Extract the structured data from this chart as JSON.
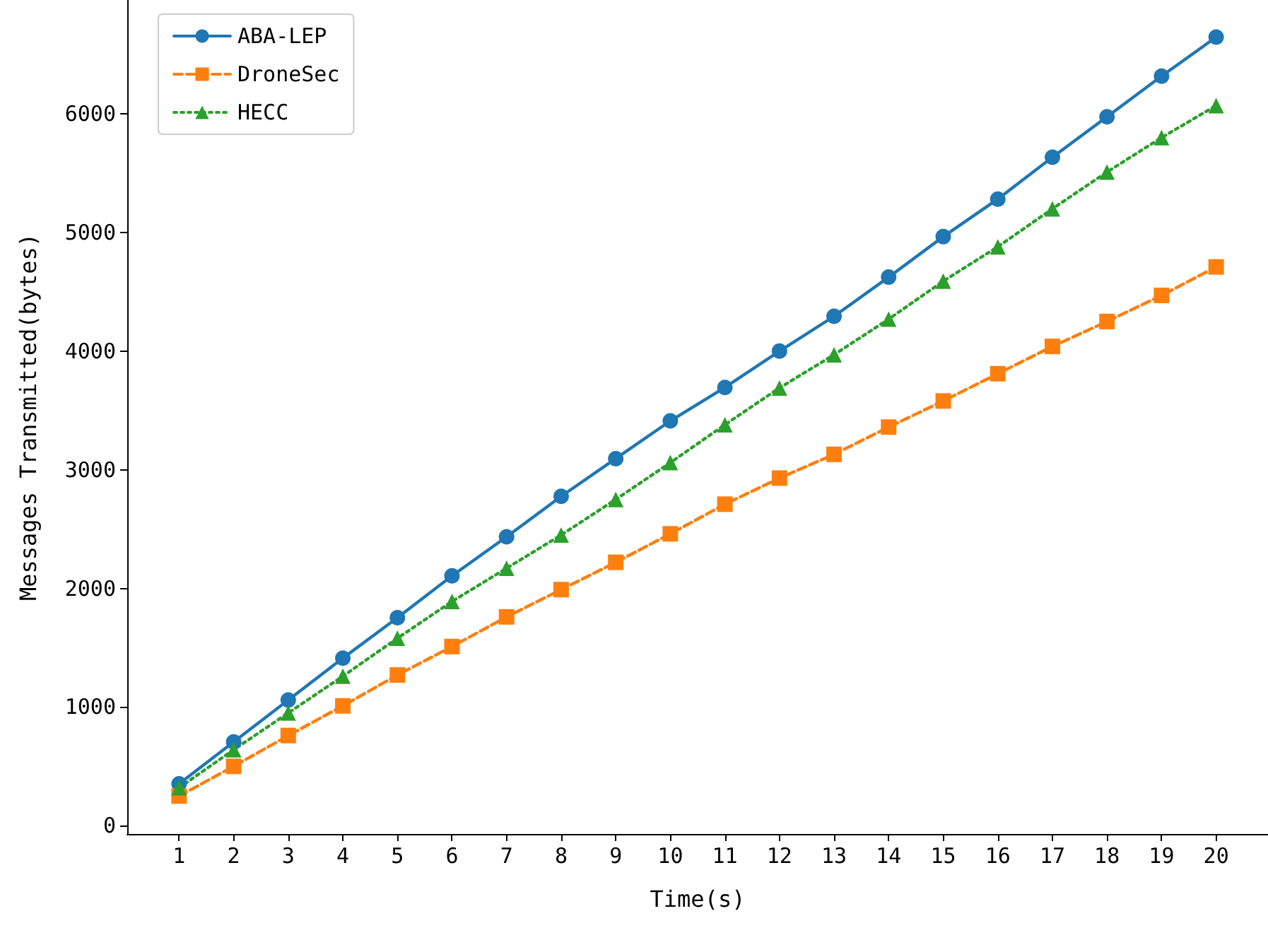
{
  "chart_data": {
    "type": "line",
    "xlabel": "Time(s)",
    "ylabel": "Messages Transmitted(bytes)",
    "x": [
      1,
      2,
      3,
      4,
      5,
      6,
      7,
      8,
      9,
      10,
      11,
      12,
      13,
      14,
      15,
      16,
      17,
      18,
      19,
      20
    ],
    "series": [
      {
        "name": "ABA-LEP",
        "color": "#1f77b4",
        "marker": "circle",
        "line_style": "solid",
        "values": [
          353,
          706,
          1059,
          1412,
          1753,
          2106,
          2435,
          2776,
          3094,
          3412,
          3694,
          4000,
          4294,
          4624,
          4965,
          5282,
          5635,
          5976,
          6318,
          6647
        ]
      },
      {
        "name": "DroneSec",
        "color": "#ff7f0e",
        "marker": "square",
        "line_style": "dashed",
        "values": [
          250,
          500,
          760,
          1010,
          1270,
          1510,
          1760,
          1990,
          2220,
          2460,
          2710,
          2930,
          3130,
          3360,
          3580,
          3810,
          4040,
          4250,
          4470,
          4710
        ]
      },
      {
        "name": "HECC",
        "color": "#2ca02c",
        "marker": "triangle",
        "line_style": "dotted",
        "values": [
          320,
          640,
          950,
          1260,
          1580,
          1890,
          2170,
          2450,
          2750,
          3060,
          3380,
          3690,
          3970,
          4270,
          4590,
          4880,
          5200,
          5510,
          5800,
          6070
        ]
      }
    ],
    "xlim": [
      0.05,
      20.95
    ],
    "xticks": [
      1,
      2,
      3,
      4,
      5,
      6,
      7,
      8,
      9,
      10,
      11,
      12,
      13,
      14,
      15,
      16,
      17,
      18,
      19,
      20
    ],
    "ylim": [
      -70,
      6960
    ],
    "yticks": [
      0,
      1000,
      2000,
      3000,
      4000,
      5000,
      6000
    ],
    "legend": "top left",
    "grid": false
  }
}
